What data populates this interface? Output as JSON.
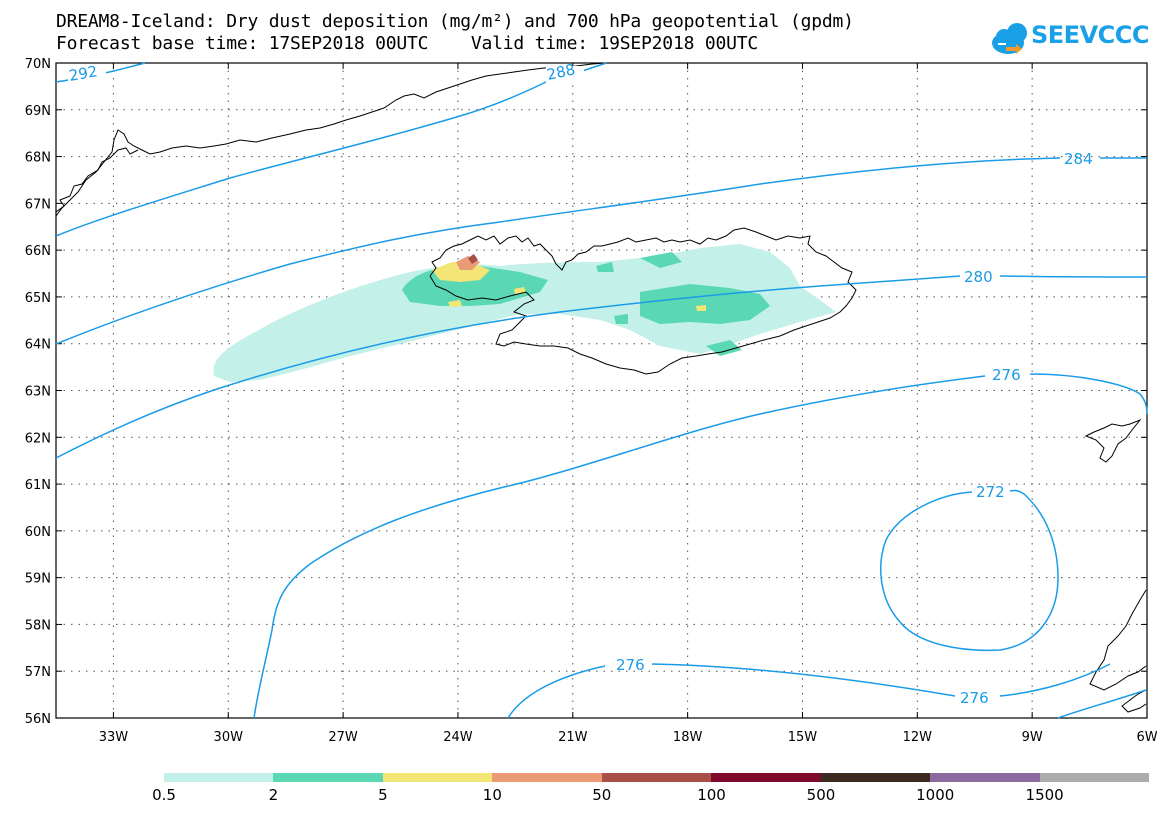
{
  "title": {
    "line1": "DREAM8-Iceland: Dry dust deposition (mg/m²) and 700 hPa geopotential (gpdm)",
    "line2": "Forecast base time: 17SEP2018 00UTC    Valid time: 19SEP2018 00UTC"
  },
  "logo": {
    "text": "SEEVCCC",
    "icon": "cloud-arrow-icon",
    "color": "#1aa0e6"
  },
  "map": {
    "lat_labels": [
      "70N",
      "69N",
      "68N",
      "67N",
      "66N",
      "65N",
      "64N",
      "63N",
      "62N",
      "61N",
      "60N",
      "59N",
      "58N",
      "57N",
      "56N"
    ],
    "lon_labels": [
      "33W",
      "30W",
      "27W",
      "24W",
      "21W",
      "18W",
      "15W",
      "12W",
      "9W",
      "6W"
    ],
    "lat_range": [
      56,
      70
    ],
    "lon_range": [
      -34.5,
      -6
    ],
    "grid": "dotted",
    "contour_color": "#1a9be8",
    "contour_labels": [
      "292",
      "288",
      "284",
      "280",
      "276",
      "272",
      "276",
      "276"
    ]
  },
  "legend": {
    "labels": [
      "0.5",
      "2",
      "5",
      "10",
      "50",
      "100",
      "500",
      "1000",
      "1500"
    ],
    "colors": [
      "#c4f0ea",
      "#5ad8b4",
      "#f4e577",
      "#ea9a74",
      "#a84f47",
      "#7f0a2c",
      "#3b2a1f",
      "#8a6a9f",
      "#acacac"
    ]
  }
}
